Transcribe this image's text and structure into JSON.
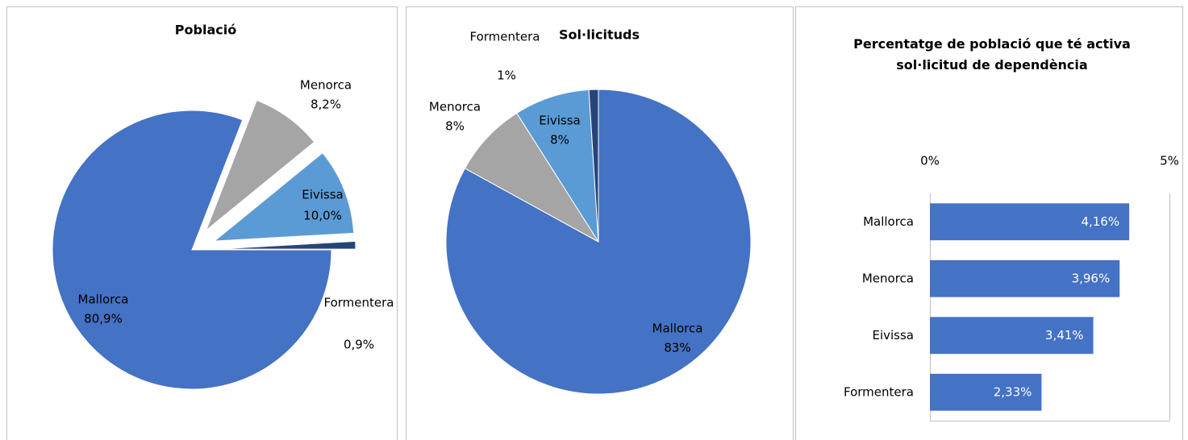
{
  "chart_data": [
    {
      "type": "pie",
      "title": "Població",
      "categories": [
        "Mallorca",
        "Menorca",
        "Eivissa",
        "Formentera"
      ],
      "values": [
        80.9,
        8.2,
        10.0,
        0.9
      ],
      "value_labels": [
        "80,9%",
        "8,2%",
        "10,0%",
        "0,9%"
      ],
      "colors": [
        "#4472c4",
        "#a5a5a5",
        "#5b9bd5",
        "#264478"
      ]
    },
    {
      "type": "pie",
      "title": "Sol·licituds",
      "categories": [
        "Mallorca",
        "Menorca",
        "Eivissa",
        "Formentera"
      ],
      "values": [
        83,
        8,
        8,
        1
      ],
      "value_labels": [
        "83%",
        "8%",
        "8%",
        "1%"
      ],
      "colors": [
        "#4472c4",
        "#a5a5a5",
        "#5b9bd5",
        "#264478"
      ]
    },
    {
      "type": "hbar",
      "title": "Percentatge de població que té activa sol·licitud de dependència",
      "categories": [
        "Mallorca",
        "Menorca",
        "Eivissa",
        "Formentera"
      ],
      "values": [
        4.16,
        3.96,
        3.41,
        2.33
      ],
      "value_labels": [
        "4,16%",
        "3,96%",
        "3,41%",
        "2,33%"
      ],
      "color": "#4472c4",
      "xlim": [
        0,
        5
      ],
      "xticks": [
        {
          "value": 0,
          "label": "0%"
        },
        {
          "value": 5,
          "label": "5%"
        }
      ]
    }
  ]
}
